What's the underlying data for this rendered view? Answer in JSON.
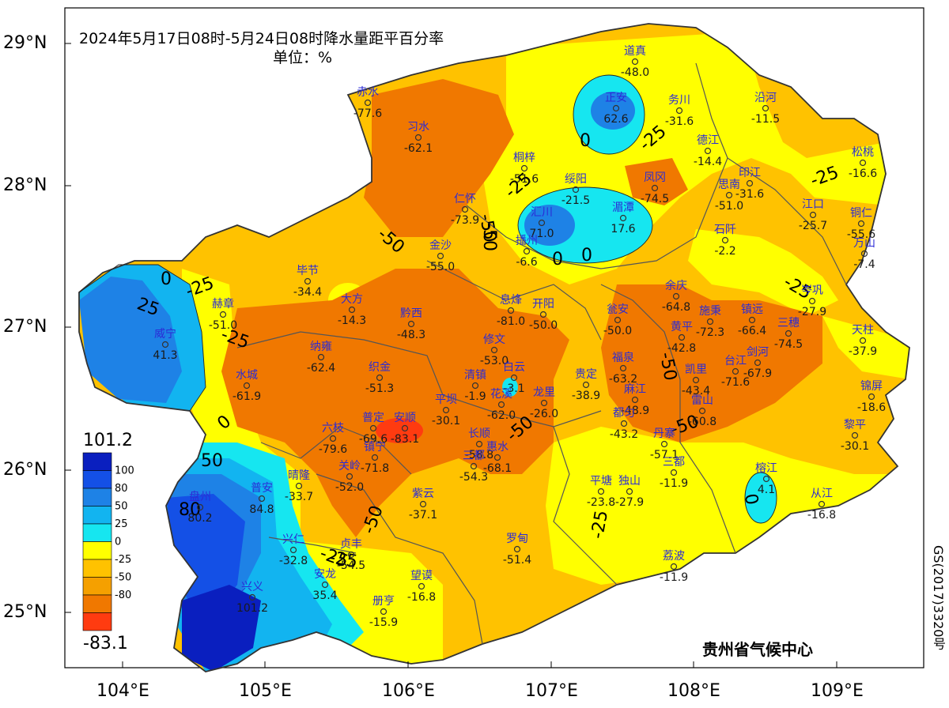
{
  "title": {
    "line1": "2024年5月17日08时-5月24日08时降水量距平百分率",
    "line2": "单位：%"
  },
  "axes": {
    "lat_labels": [
      "29°N",
      "28°N",
      "27°N",
      "26°N",
      "25°N"
    ],
    "lon_labels": [
      "104°E",
      "105°E",
      "106°E",
      "107°E",
      "108°E",
      "109°E"
    ]
  },
  "legend": {
    "max": "101.2",
    "min": "-83.1",
    "levels": [
      "100",
      "80",
      "50",
      "25",
      "0",
      "-25",
      "-50",
      "-80"
    ],
    "colors": [
      "#0a1fbf",
      "#1450e6",
      "#1e82e6",
      "#12b4f0",
      "#16e6f0",
      "#ffff00",
      "#ffc200",
      "#f5a000",
      "#f07800",
      "#ff3b10"
    ]
  },
  "contour_labels": [
    "-25",
    "0",
    "-25",
    "-50",
    "-25",
    "0",
    "-50",
    "0",
    "-25",
    "-25",
    "-50",
    "-50",
    "-50",
    "0",
    "-25",
    "-25",
    "25",
    "0",
    "-25",
    "-50",
    "-25",
    "50",
    "80",
    "0",
    "-50"
  ],
  "stations": [
    {
      "name": "道真",
      "value": "-48.0"
    },
    {
      "name": "正安",
      "value": "62.6"
    },
    {
      "name": "务川",
      "value": "-31.6"
    },
    {
      "name": "沿河",
      "value": "-11.5"
    },
    {
      "name": "赤水",
      "value": "-77.6"
    },
    {
      "name": "习水",
      "value": "-62.1"
    },
    {
      "name": "桐梓",
      "value": "-51.6"
    },
    {
      "name": "德江",
      "value": "-14.4"
    },
    {
      "name": "松桃",
      "value": "-16.6"
    },
    {
      "name": "绥阳",
      "value": "-21.5"
    },
    {
      "name": "凤冈",
      "value": "-74.5"
    },
    {
      "name": "印江",
      "value": "-31.6"
    },
    {
      "name": "思南",
      "value": "-51.0"
    },
    {
      "name": "仁怀",
      "value": "-73.9"
    },
    {
      "name": "汇川",
      "value": "71.0"
    },
    {
      "name": "湄潭",
      "value": "17.6"
    },
    {
      "name": "江口",
      "value": "-25.7"
    },
    {
      "name": "铜仁",
      "value": "-55.6"
    },
    {
      "name": "播州",
      "value": "-6.6"
    },
    {
      "name": "石阡",
      "value": "-2.2"
    },
    {
      "name": "万山",
      "value": "-7.4"
    },
    {
      "name": "金沙",
      "value": "-55.0"
    },
    {
      "name": "毕节",
      "value": "-34.4"
    },
    {
      "name": "大方",
      "value": "-14.3"
    },
    {
      "name": "余庆",
      "value": "-64.8"
    },
    {
      "name": "岑巩",
      "value": "-27.9"
    },
    {
      "name": "赫章",
      "value": "-51.0"
    },
    {
      "name": "息烽",
      "value": "-81.0"
    },
    {
      "name": "开阳",
      "value": "-50.0"
    },
    {
      "name": "黔西",
      "value": "-48.3"
    },
    {
      "name": "瓮安",
      "value": "-50.0"
    },
    {
      "name": "施秉",
      "value": "-72.3"
    },
    {
      "name": "镇远",
      "value": "-66.4"
    },
    {
      "name": "三穗",
      "value": "-74.5"
    },
    {
      "name": "威宁",
      "value": "41.3"
    },
    {
      "name": "黄平",
      "value": "-42.8"
    },
    {
      "name": "天柱",
      "value": "-37.9"
    },
    {
      "name": "纳雍",
      "value": "-62.4"
    },
    {
      "name": "修文",
      "value": "-53.0"
    },
    {
      "name": "剑河",
      "value": "-67.9"
    },
    {
      "name": "福泉",
      "value": "-63.2"
    },
    {
      "name": "台江",
      "value": "-71.6"
    },
    {
      "name": "织金",
      "value": "-51.3"
    },
    {
      "name": "清镇",
      "value": "-1.9"
    },
    {
      "name": "白云",
      "value": "-3.1"
    },
    {
      "name": "贵定",
      "value": "-38.9"
    },
    {
      "name": "凯里",
      "value": "-43.4"
    },
    {
      "name": "水城",
      "value": "-61.9"
    },
    {
      "name": "锦屏",
      "value": "-18.6"
    },
    {
      "name": "龙里",
      "value": "-26.0"
    },
    {
      "name": "麻江",
      "value": "-48.9"
    },
    {
      "name": "雷山",
      "value": "-60.8"
    },
    {
      "name": "平坝",
      "value": "-30.1"
    },
    {
      "name": "花溪",
      "value": "-62.0"
    },
    {
      "name": "都匀",
      "value": "-43.2"
    },
    {
      "name": "普定",
      "value": "-69.6"
    },
    {
      "name": "安顺",
      "value": "-83.1"
    },
    {
      "name": "长顺",
      "value": "-58.8"
    },
    {
      "name": "丹寨",
      "value": "-57.1"
    },
    {
      "name": "黎平",
      "value": "-30.1"
    },
    {
      "name": "六枝",
      "value": "-79.6"
    },
    {
      "name": "镇宁",
      "value": "-71.8"
    },
    {
      "name": "惠水",
      "value": "-68.1"
    },
    {
      "name": "关岭",
      "value": "-52.0"
    },
    {
      "name": "三都",
      "value": "-54.3"
    },
    {
      "name": "榕江",
      "value": "4.1"
    },
    {
      "name": "晴隆",
      "value": "-33.7"
    },
    {
      "name": "平塘",
      "value": "-23.8"
    },
    {
      "name": "独山",
      "value": "-27.9"
    },
    {
      "name": "从江",
      "value": "-16.8"
    },
    {
      "name": "盘州",
      "value": "80.2"
    },
    {
      "name": "普安",
      "value": "84.8"
    },
    {
      "name": "紫云",
      "value": "-37.1"
    },
    {
      "name": "兴仁",
      "value": "-32.8"
    },
    {
      "name": "贞丰",
      "value": "-54.5"
    },
    {
      "name": "罗甸",
      "value": "-51.4"
    },
    {
      "name": "荔波",
      "value": "-11.9"
    },
    {
      "name": "安龙",
      "value": "35.4"
    },
    {
      "name": "望谟",
      "value": "-16.8"
    },
    {
      "name": "兴义",
      "value": "101.2"
    },
    {
      "name": "册亨",
      "value": "-15.9"
    },
    {
      "name": "三都2",
      "value": "-11.9"
    }
  ],
  "footer": "贵州省气候中心",
  "side_note": "GS(2017)3320号"
}
